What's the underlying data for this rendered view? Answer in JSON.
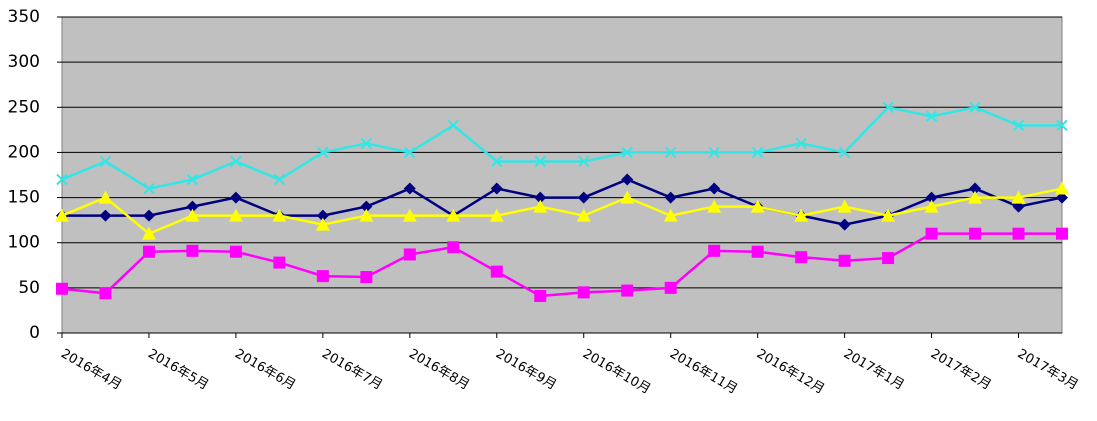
{
  "chart_data": {
    "type": "line",
    "categories": [
      "2016年4月",
      null,
      "2016年5月",
      null,
      "2016年6月",
      null,
      "2016年7月",
      null,
      "2016年8月",
      null,
      "2016年9月",
      null,
      "2016年10月",
      null,
      "2016年11月",
      null,
      "2016年12月",
      null,
      "2017年1月",
      null,
      "2017年2月",
      null,
      "2017年3月",
      null
    ],
    "series": [
      {
        "color": "#000080",
        "marker": "diamond",
        "values": [
          130,
          130,
          130,
          140,
          150,
          130,
          130,
          140,
          160,
          130,
          160,
          150,
          150,
          170,
          150,
          160,
          140,
          130,
          120,
          130,
          150,
          160,
          140,
          150
        ]
      },
      {
        "color": "#ff00ff",
        "marker": "square",
        "values": [
          49,
          44,
          90,
          91,
          90,
          78,
          63,
          62,
          87,
          95,
          68,
          41,
          45,
          47,
          50,
          91,
          90,
          84,
          80,
          83,
          110,
          110,
          110,
          110
        ]
      },
      {
        "color": "#ffff00",
        "marker": "triangle",
        "values": [
          130,
          150,
          110,
          130,
          130,
          130,
          120,
          130,
          130,
          130,
          130,
          140,
          130,
          150,
          130,
          140,
          140,
          130,
          140,
          130,
          140,
          150,
          150,
          160
        ]
      },
      {
        "color": "#33e6e6",
        "marker": "x",
        "values": [
          170,
          190,
          160,
          170,
          190,
          170,
          200,
          210,
          200,
          230,
          190,
          190,
          190,
          200,
          200,
          200,
          200,
          210,
          200,
          250,
          240,
          250,
          230,
          230
        ]
      }
    ],
    "ylim": [
      0,
      350
    ],
    "yticks": [
      0,
      50,
      100,
      150,
      200,
      250,
      300,
      350
    ],
    "grid": true,
    "background": "#c0c0c0"
  }
}
